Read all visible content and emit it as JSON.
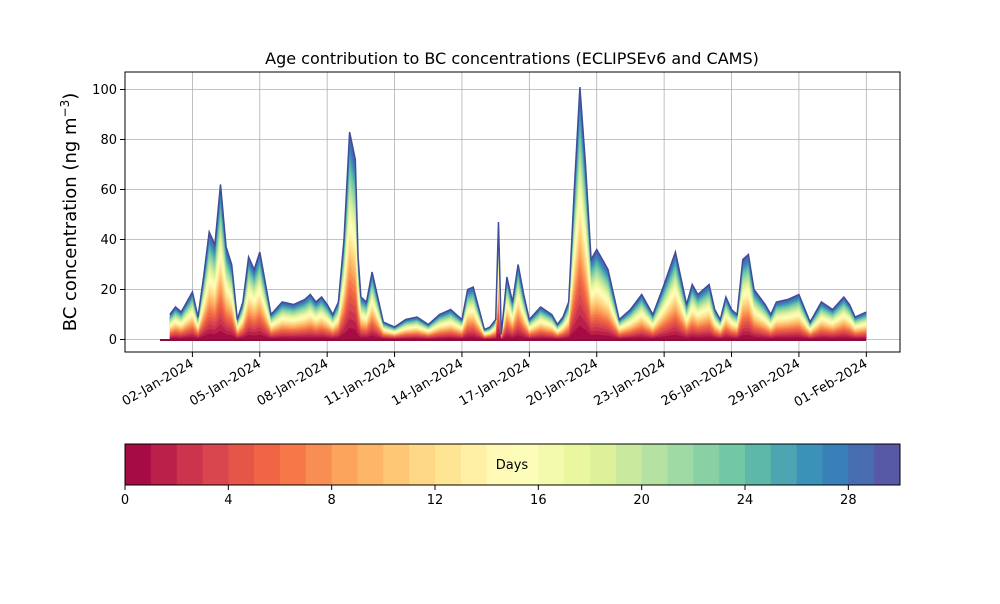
{
  "chart_data": {
    "type": "area",
    "title": "Age contribution to BC concentrations (ECLIPSEv6 and CAMS)",
    "ylabel_main": "BC concentration (ng m",
    "ylabel_sup": "−3",
    "ylabel_close": ")",
    "xlabel": "",
    "ylim": [
      -5,
      107
    ],
    "xlim": [
      "2023-12-30",
      "2024-02-02T12:00"
    ],
    "grid": true,
    "x_ticks": [
      "02-Jan-2024",
      "05-Jan-2024",
      "08-Jan-2024",
      "11-Jan-2024",
      "14-Jan-2024",
      "17-Jan-2024",
      "20-Jan-2024",
      "23-Jan-2024",
      "26-Jan-2024",
      "29-Jan-2024",
      "01-Feb-2024"
    ],
    "x_tick_dates": [
      "2024-01-02",
      "2024-01-05",
      "2024-01-08",
      "2024-01-11",
      "2024-01-14",
      "2024-01-17",
      "2024-01-20",
      "2024-01-23",
      "2024-01-26",
      "2024-01-29",
      "2024-02-01"
    ],
    "y_ticks": [
      "0",
      "20",
      "40",
      "60",
      "80",
      "100"
    ],
    "y_tick_values": [
      0,
      20,
      40,
      60,
      80,
      100
    ],
    "total": {
      "x": [
        "2024-01-01",
        "2024-01-01T06:00",
        "2024-01-01T12:00",
        "2024-01-01T18:00",
        "2024-01-02",
        "2024-01-02T06:00",
        "2024-01-02T12:00",
        "2024-01-02T18:00",
        "2024-01-03",
        "2024-01-03T06:00",
        "2024-01-03T12:00",
        "2024-01-03T18:00",
        "2024-01-04",
        "2024-01-04T06:00",
        "2024-01-04T12:00",
        "2024-01-04T18:00",
        "2024-01-05",
        "2024-01-05T12:00",
        "2024-01-06",
        "2024-01-06T12:00",
        "2024-01-07",
        "2024-01-07T06:00",
        "2024-01-07T12:00",
        "2024-01-07T18:00",
        "2024-01-08",
        "2024-01-08T06:00",
        "2024-01-08T12:00",
        "2024-01-08T18:00",
        "2024-01-09",
        "2024-01-09T06:00",
        "2024-01-09T09:00",
        "2024-01-09T12:00",
        "2024-01-09T18:00",
        "2024-01-10",
        "2024-01-10T12:00",
        "2024-01-11",
        "2024-01-11T12:00",
        "2024-01-12",
        "2024-01-12T12:00",
        "2024-01-13",
        "2024-01-13T12:00",
        "2024-01-13T18:00",
        "2024-01-14",
        "2024-01-14T06:00",
        "2024-01-14T12:00",
        "2024-01-15",
        "2024-01-15T06:00",
        "2024-01-15T12:00",
        "2024-01-15T15:00",
        "2024-01-15T18:00",
        "2024-01-16",
        "2024-01-16T06:00",
        "2024-01-16T12:00",
        "2024-01-16T18:00",
        "2024-01-17",
        "2024-01-17T12:00",
        "2024-01-18",
        "2024-01-18T06:00",
        "2024-01-18T12:00",
        "2024-01-18T18:00",
        "2024-01-19",
        "2024-01-19T06:00",
        "2024-01-19T12:00",
        "2024-01-19T18:00",
        "2024-01-20",
        "2024-01-20T06:00",
        "2024-01-20T12:00",
        "2024-01-20T18:00",
        "2024-01-21",
        "2024-01-21T12:00",
        "2024-01-22",
        "2024-01-22T12:00",
        "2024-01-23",
        "2024-01-23T12:00",
        "2024-01-24",
        "2024-01-24T06:00",
        "2024-01-24T12:00",
        "2024-01-24T18:00",
        "2024-01-25",
        "2024-01-25T06:00",
        "2024-01-25T12:00",
        "2024-01-25T18:00",
        "2024-01-26",
        "2024-01-26T06:00",
        "2024-01-26T12:00",
        "2024-01-26T18:00",
        "2024-01-27",
        "2024-01-27T06:00",
        "2024-01-27T12:00",
        "2024-01-27T18:00",
        "2024-01-28",
        "2024-01-28T12:00",
        "2024-01-29",
        "2024-01-29T12:00",
        "2024-01-30",
        "2024-01-30T12:00",
        "2024-01-31",
        "2024-01-31T06:00",
        "2024-01-31T12:00",
        "2024-01-31T18:00",
        "2024-02-01"
      ],
      "y": [
        10,
        13,
        11,
        15,
        19,
        9,
        25,
        43,
        38,
        62,
        37,
        30,
        8,
        15,
        33,
        28,
        35,
        10,
        15,
        14,
        16,
        18,
        15,
        17,
        14,
        10,
        15,
        40,
        83,
        72,
        33,
        17,
        15,
        27,
        7,
        5,
        8,
        9,
        6,
        10,
        12,
        10,
        8,
        20,
        21,
        4,
        5,
        8,
        47,
        2,
        25,
        15,
        30,
        18,
        8,
        13,
        10,
        6,
        9,
        15,
        60,
        101,
        70,
        32,
        36,
        32,
        28,
        18,
        8,
        12,
        18,
        10,
        22,
        35,
        14,
        22,
        18,
        20,
        22,
        12,
        8,
        17,
        12,
        10,
        32,
        34,
        20,
        17,
        14,
        10,
        15,
        16,
        18,
        7,
        15,
        12,
        17,
        14,
        9,
        10,
        11
      ]
    },
    "type_detail": "stacked contributions by particle age (days)",
    "colorbar": {
      "label": "Days",
      "min": 0,
      "max": 30,
      "ticks": [
        "0",
        "4",
        "8",
        "12",
        "16",
        "20",
        "24",
        "28"
      ],
      "tick_values": [
        0,
        4,
        8,
        12,
        16,
        20,
        24,
        28
      ],
      "colormap": "Spectral",
      "bins": 30
    }
  }
}
